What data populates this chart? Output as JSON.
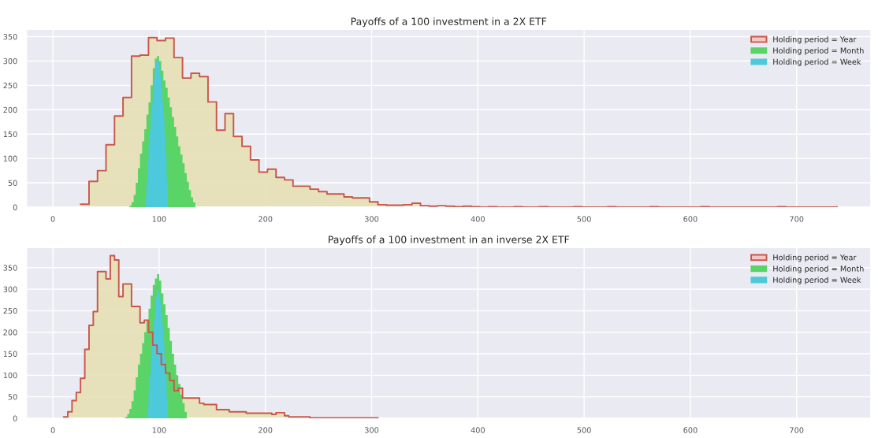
{
  "chart_data": [
    {
      "type": "step",
      "title": "Payoffs of a 100 investment in a 2X ETF",
      "xlim": [
        -25,
        770
      ],
      "ylim": [
        0,
        365
      ],
      "xticks": [
        0,
        100,
        200,
        300,
        400,
        500,
        600,
        700
      ],
      "yticks": [
        0,
        50,
        100,
        150,
        200,
        250,
        300,
        350
      ],
      "grid": true,
      "legend": "top right",
      "series": [
        {
          "name": "Holding period = Year",
          "color": "#c9574b",
          "x": [
            26,
            34,
            42,
            50,
            58,
            66,
            74,
            82,
            90,
            98,
            106,
            114,
            122,
            130,
            138,
            146,
            154,
            162,
            170,
            178,
            186,
            194,
            202,
            210,
            218,
            226,
            234,
            242,
            250,
            258,
            266,
            274,
            282,
            290,
            298,
            306,
            314,
            322,
            330,
            338,
            346,
            354,
            362,
            370,
            378,
            386,
            394,
            402,
            410,
            418,
            426,
            434,
            442,
            450,
            458,
            466,
            474,
            482,
            490,
            498,
            506,
            514,
            522,
            530,
            538,
            546,
            554,
            562,
            570,
            578,
            586,
            594,
            602,
            610,
            618,
            626,
            634,
            642,
            650,
            658,
            666,
            674,
            682,
            690,
            698,
            706,
            714,
            722,
            730,
            738
          ],
          "values": [
            6,
            53,
            75,
            128,
            187,
            225,
            310,
            312,
            348,
            342,
            347,
            307,
            265,
            275,
            268,
            216,
            158,
            192,
            145,
            125,
            97,
            72,
            78,
            61,
            56,
            43,
            43,
            37,
            32,
            27,
            27,
            21,
            19,
            19,
            11,
            5,
            4,
            4,
            5,
            8,
            3,
            2,
            3,
            2,
            1,
            2,
            1,
            0,
            1,
            0,
            0,
            1,
            0,
            0,
            1,
            0,
            0,
            0,
            1,
            0,
            0,
            0,
            1,
            0,
            0,
            0,
            0,
            1,
            0,
            0,
            0,
            0,
            0,
            1,
            0,
            0,
            0,
            0,
            0,
            0,
            0,
            0,
            1,
            0,
            0,
            0,
            0,
            0,
            0,
            1
          ]
        },
        {
          "name": "Holding period = Month",
          "type": "area",
          "color": "#5ad367",
          "x": [
            72,
            74,
            76,
            78,
            80,
            82,
            84,
            86,
            88,
            90,
            92,
            94,
            96,
            98,
            100,
            102,
            104,
            106,
            108,
            110,
            112,
            114,
            116,
            118,
            120,
            122,
            124,
            126,
            128,
            130,
            132,
            134
          ],
          "values": [
            3,
            10,
            25,
            50,
            80,
            110,
            135,
            160,
            190,
            215,
            250,
            285,
            305,
            310,
            300,
            280,
            260,
            245,
            225,
            205,
            185,
            165,
            145,
            125,
            108,
            90,
            70,
            52,
            35,
            20,
            10,
            4
          ]
        },
        {
          "name": "Holding period = Week",
          "type": "area",
          "color": "#4ccadb",
          "x": [
            87,
            88,
            89,
            90,
            91,
            92,
            93,
            94,
            95,
            96,
            97,
            98,
            99,
            100,
            101,
            102,
            103,
            104,
            105,
            106,
            107,
            108
          ],
          "values": [
            20,
            50,
            95,
            125,
            155,
            190,
            215,
            240,
            265,
            285,
            298,
            302,
            300,
            290,
            270,
            245,
            215,
            185,
            150,
            105,
            60,
            20
          ]
        }
      ]
    },
    {
      "type": "step",
      "title": "Payoffs of a 100 investment in an inverse 2X ETF",
      "xlim": [
        -25,
        770
      ],
      "ylim": [
        0,
        397
      ],
      "xticks": [
        0,
        100,
        200,
        300,
        400,
        500,
        600,
        700
      ],
      "yticks": [
        0,
        50,
        100,
        150,
        200,
        250,
        300,
        350
      ],
      "grid": true,
      "legend": "top right",
      "series": [
        {
          "name": "Holding period = Year",
          "color": "#c9574b",
          "x": [
            10,
            14,
            18,
            22,
            26,
            30,
            34,
            38,
            42,
            46,
            50,
            54,
            58,
            62,
            66,
            70,
            74,
            78,
            82,
            86,
            90,
            94,
            98,
            102,
            106,
            110,
            114,
            118,
            122,
            126,
            130,
            134,
            138,
            142,
            146,
            150,
            154,
            158,
            162,
            166,
            170,
            174,
            178,
            182,
            186,
            190,
            194,
            198,
            202,
            206,
            210,
            214,
            218,
            222,
            226,
            230,
            234,
            238,
            242,
            246,
            250,
            254,
            258,
            262,
            266,
            270,
            274,
            278,
            282,
            286,
            290,
            294,
            298,
            302,
            306
          ],
          "values": [
            3,
            15,
            41,
            60,
            93,
            160,
            216,
            248,
            341,
            341,
            324,
            378,
            368,
            283,
            312,
            312,
            260,
            260,
            222,
            228,
            200,
            170,
            150,
            125,
            105,
            88,
            64,
            70,
            47,
            47,
            47,
            47,
            35,
            32,
            32,
            32,
            20,
            20,
            20,
            15,
            15,
            15,
            15,
            12,
            12,
            12,
            12,
            12,
            12,
            9,
            13,
            13,
            6,
            3,
            3,
            3,
            3,
            3,
            1,
            1,
            1,
            1,
            1,
            1,
            1,
            1,
            1,
            1,
            1,
            1,
            1,
            1,
            1,
            1,
            1
          ]
        },
        {
          "name": "Holding period = Month",
          "type": "area",
          "color": "#5ad367",
          "x": [
            68,
            70,
            72,
            74,
            76,
            78,
            80,
            82,
            84,
            86,
            88,
            90,
            92,
            94,
            96,
            98,
            100,
            102,
            104,
            106,
            108,
            110,
            112,
            114,
            116,
            118,
            120,
            122,
            124,
            126
          ],
          "values": [
            3,
            10,
            22,
            40,
            65,
            95,
            125,
            150,
            175,
            200,
            225,
            255,
            285,
            310,
            325,
            335,
            320,
            290,
            265,
            240,
            210,
            180,
            150,
            125,
            100,
            80,
            55,
            35,
            15,
            5
          ]
        },
        {
          "name": "Holding period = Week",
          "type": "area",
          "color": "#4ccadb",
          "x": [
            89,
            90,
            91,
            92,
            93,
            94,
            95,
            96,
            97,
            98,
            99,
            100,
            101,
            102,
            103,
            104,
            105,
            106,
            107,
            108
          ],
          "values": [
            25,
            60,
            100,
            135,
            170,
            200,
            230,
            255,
            280,
            298,
            300,
            290,
            270,
            245,
            215,
            180,
            140,
            95,
            50,
            20
          ]
        }
      ]
    }
  ]
}
